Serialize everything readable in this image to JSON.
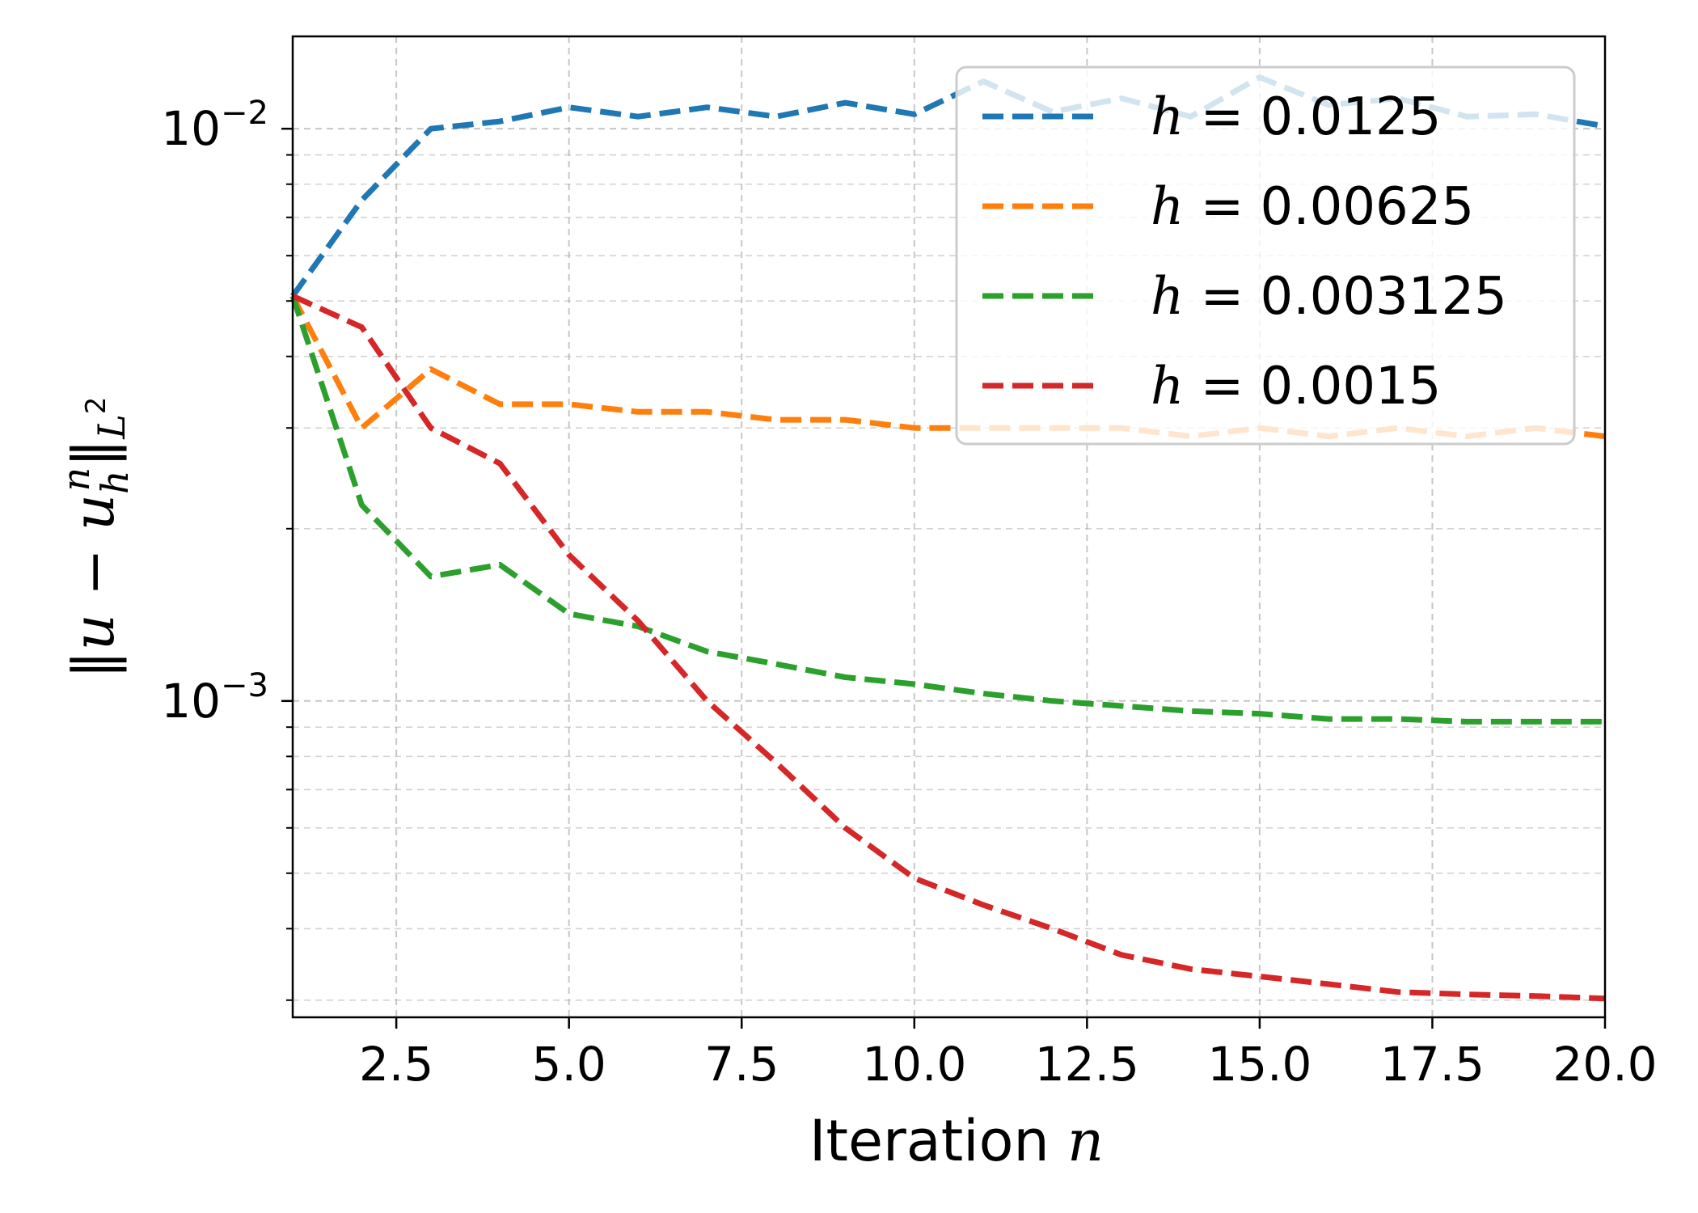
{
  "chart_data": {
    "type": "line",
    "xlabel": "Iteration",
    "xlabel_var": "n",
    "ylabel_text": "‖u − u",
    "ylabel_sub": "h",
    "ylabel_sup": "n",
    "ylabel_close": "‖",
    "ylabel_norm_sub": "L",
    "ylabel_norm_sup": "2",
    "x_scale": "linear",
    "y_scale": "log",
    "xlim": [
      1,
      20
    ],
    "ylim": [
      0.00028,
      0.0145
    ],
    "xticks": [
      2.5,
      5.0,
      7.5,
      10.0,
      12.5,
      15.0,
      17.5,
      20.0
    ],
    "xtick_labels": [
      "2.5",
      "5.0",
      "7.5",
      "10.0",
      "12.5",
      "15.0",
      "17.5",
      "20.0"
    ],
    "yticks_major": [
      0.001,
      0.01
    ],
    "ytick_labels": [
      {
        "base": "10",
        "exp": "−3"
      },
      {
        "base": "10",
        "exp": "−2"
      }
    ],
    "grid": true,
    "legend_position": "top-right",
    "legend_var": "h",
    "series": [
      {
        "name": "h = 0.0125",
        "value_text": "= 0.0125",
        "color": "#1f77b4",
        "x": [
          1,
          2,
          3,
          4,
          5,
          6,
          7,
          8,
          9,
          10,
          11,
          12,
          13,
          14,
          15,
          16,
          17,
          18,
          19,
          20
        ],
        "y": [
          0.0051,
          0.0075,
          0.01,
          0.0103,
          0.0109,
          0.0105,
          0.0109,
          0.0105,
          0.0111,
          0.0106,
          0.0121,
          0.0107,
          0.0113,
          0.0105,
          0.0123,
          0.011,
          0.0113,
          0.0105,
          0.0106,
          0.0101
        ]
      },
      {
        "name": "h = 0.00625",
        "value_text": "= 0.00625",
        "color": "#ff7f0e",
        "x": [
          1,
          2,
          3,
          4,
          5,
          6,
          7,
          8,
          9,
          10,
          11,
          12,
          13,
          14,
          15,
          16,
          17,
          18,
          19,
          20
        ],
        "y": [
          0.0051,
          0.003,
          0.0038,
          0.0033,
          0.0033,
          0.0032,
          0.0032,
          0.0031,
          0.0031,
          0.003,
          0.003,
          0.003,
          0.003,
          0.0029,
          0.003,
          0.0029,
          0.003,
          0.0029,
          0.003,
          0.0029
        ]
      },
      {
        "name": "h = 0.003125",
        "value_text": "= 0.003125",
        "color": "#2ca02c",
        "x": [
          1,
          2,
          3,
          4,
          5,
          6,
          7,
          8,
          9,
          10,
          11,
          12,
          13,
          14,
          15,
          16,
          17,
          18,
          19,
          20
        ],
        "y": [
          0.0051,
          0.0022,
          0.00165,
          0.00173,
          0.00142,
          0.00135,
          0.00122,
          0.00116,
          0.0011,
          0.00107,
          0.00103,
          0.001,
          0.00098,
          0.00096,
          0.00095,
          0.00093,
          0.00093,
          0.00092,
          0.00092,
          0.00092
        ]
      },
      {
        "name": "h = 0.0015",
        "value_text": "= 0.0015",
        "color": "#d62728",
        "x": [
          1,
          2,
          3,
          4,
          5,
          6,
          7,
          8,
          9,
          10,
          11,
          12,
          13,
          14,
          15,
          16,
          17,
          18,
          19,
          20
        ],
        "y": [
          0.0051,
          0.0045,
          0.003,
          0.0026,
          0.0018,
          0.00138,
          0.001,
          0.00078,
          0.0006,
          0.00049,
          0.00044,
          0.0004,
          0.00036,
          0.00034,
          0.00033,
          0.00032,
          0.00031,
          0.000307,
          0.000305,
          0.000302
        ]
      }
    ]
  }
}
